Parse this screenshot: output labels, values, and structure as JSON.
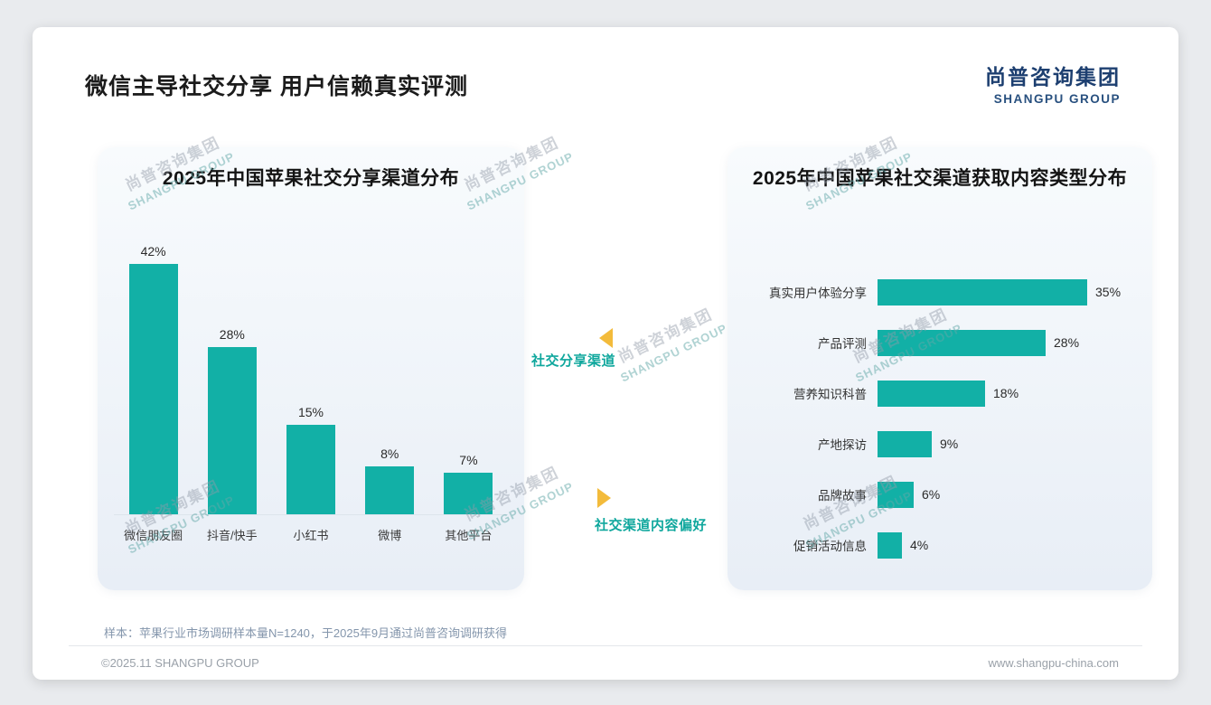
{
  "header": {
    "title": "微信主导社交分享 用户信赖真实评测",
    "logo_cn": "尚普咨询集团",
    "logo_en": "SHANGPU GROUP"
  },
  "annotations": {
    "share_channel_label": "社交分享渠道",
    "content_preference_label": "社交渠道内容偏好"
  },
  "watermark": {
    "cn": "尚普咨询集团",
    "en": "SHANGPU GROUP"
  },
  "footnote": "样本：苹果行业市场调研样本量N=1240，于2025年9月通过尚普咨询调研获得",
  "footer": {
    "left": "©2025.11 SHANGPU GROUP",
    "right": "www.shangpu-china.com"
  },
  "colors": {
    "accent_teal": "#12b0a6",
    "arrow_gold": "#f3bb3b",
    "logo_navy": "#1d3f70"
  },
  "chart_data": [
    {
      "type": "bar",
      "orientation": "vertical",
      "title": "2025年中国苹果社交分享渠道分布",
      "categories": [
        "微信朋友圈",
        "抖音/快手",
        "小红书",
        "微博",
        "其他平台"
      ],
      "values": [
        42,
        28,
        15,
        8,
        7
      ],
      "unit": "%",
      "ylim": [
        0,
        45
      ],
      "grid": false,
      "legend": false
    },
    {
      "type": "bar",
      "orientation": "horizontal",
      "title": "2025年中国苹果社交渠道获取内容类型分布",
      "categories": [
        "真实用户体验分享",
        "产品评测",
        "营养知识科普",
        "产地探访",
        "品牌故事",
        "促销活动信息"
      ],
      "values": [
        35,
        28,
        18,
        9,
        6,
        4
      ],
      "unit": "%",
      "xlim": [
        0,
        40
      ],
      "grid": false,
      "legend": false
    }
  ]
}
